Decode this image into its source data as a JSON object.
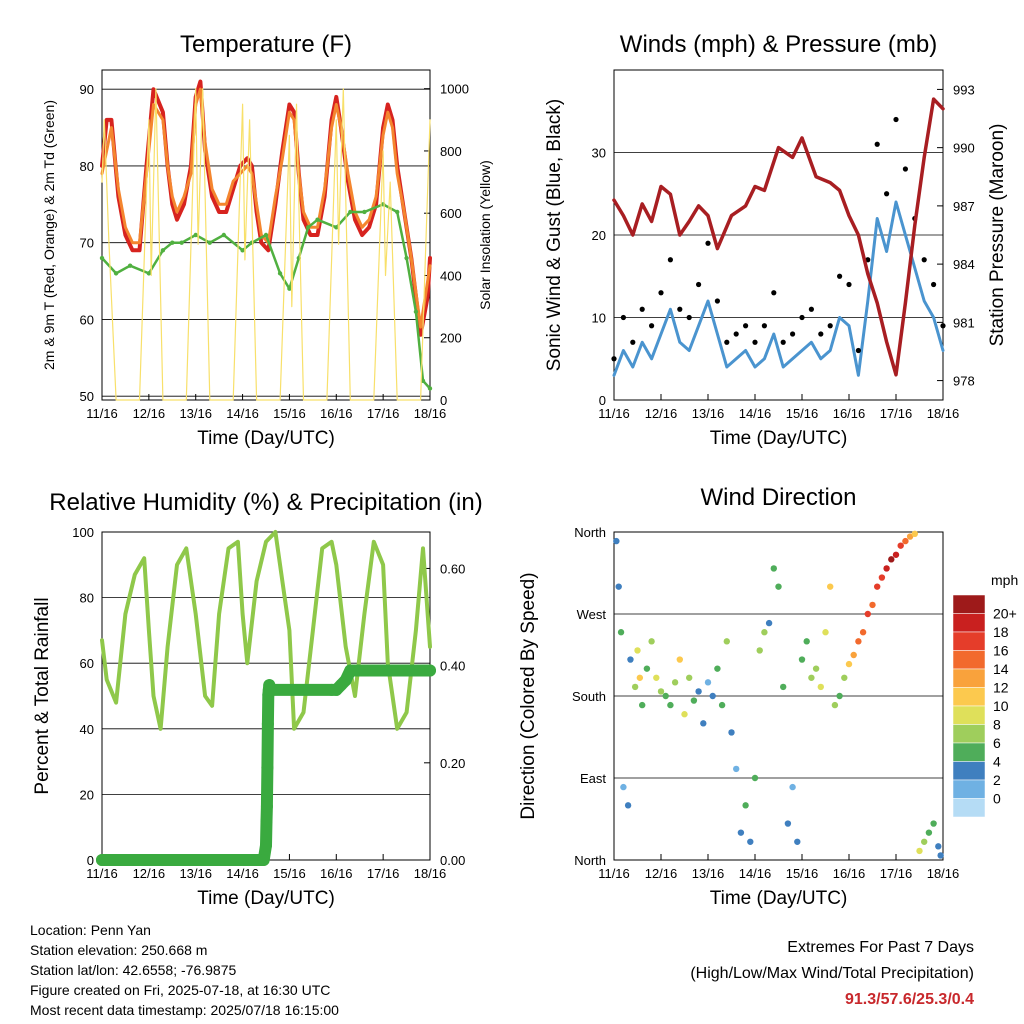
{
  "chart_data": [
    {
      "id": "temperature",
      "type": "line",
      "title": "Temperature (F)",
      "xlabel": "Time (Day/UTC)",
      "ylabel": "2m & 9m T (Red, Orange) & 2m Td (Green)",
      "y2label": "Solar Insolation (Yellow)",
      "x_ticks": [
        "11/16",
        "12/16",
        "13/16",
        "14/16",
        "15/16",
        "16/16",
        "17/16",
        "18/16"
      ],
      "ylim": [
        49.5,
        92.5
      ],
      "y_ticks": [
        50,
        60,
        70,
        80,
        90
      ],
      "y2lim": [
        0,
        1060
      ],
      "y2_ticks": [
        0,
        200,
        400,
        600,
        800,
        1000
      ],
      "grid": true,
      "colors": {
        "t2m": "#d7231f",
        "t9m": "#f4862f",
        "td": "#50b040",
        "solar": "#f8e06a"
      },
      "series": [
        {
          "key": "t2m",
          "axis": "left",
          "x": [
            0,
            0.1,
            0.2,
            0.35,
            0.5,
            0.65,
            0.8,
            0.95,
            1.1,
            1.3,
            1.4,
            1.5,
            1.6,
            1.75,
            1.9,
            2.0,
            2.1,
            2.2,
            2.35,
            2.5,
            2.65,
            2.8,
            2.95,
            3.1,
            3.2,
            3.3,
            3.4,
            3.55,
            3.7,
            3.85,
            4.0,
            4.1,
            4.2,
            4.3,
            4.45,
            4.6,
            4.75,
            4.9,
            5.0,
            5.1,
            5.25,
            5.4,
            5.55,
            5.7,
            5.85,
            6.0,
            6.1,
            6.2,
            6.3,
            6.45,
            6.6,
            6.8,
            6.95,
            7.0
          ],
          "y": [
            80,
            86,
            86,
            76,
            71,
            69,
            69,
            80,
            90,
            87,
            80,
            75,
            73,
            75,
            80,
            89,
            91,
            82,
            76,
            74,
            74,
            77,
            80,
            81,
            80,
            74,
            70,
            69,
            75,
            82,
            88,
            87,
            79,
            73,
            71,
            71,
            76,
            86,
            89,
            85,
            78,
            73,
            71,
            72,
            75,
            85,
            88,
            86,
            80,
            74,
            68,
            58,
            63,
            68
          ]
        },
        {
          "key": "t9m",
          "axis": "left",
          "x": [
            0,
            0.2,
            0.35,
            0.5,
            0.65,
            0.8,
            0.95,
            1.1,
            1.3,
            1.4,
            1.5,
            1.6,
            1.75,
            1.9,
            2.0,
            2.1,
            2.2,
            2.35,
            2.5,
            2.65,
            2.8,
            2.95,
            3.1,
            3.2,
            3.3,
            3.4,
            3.55,
            3.7,
            3.85,
            4.0,
            4.1,
            4.2,
            4.3,
            4.45,
            4.6,
            4.75,
            4.9,
            5.0,
            5.1,
            5.25,
            5.4,
            5.55,
            5.7,
            5.85,
            6.0,
            6.1,
            6.2,
            6.3,
            6.45,
            6.6,
            6.8,
            7.0
          ],
          "y": [
            79,
            85,
            77,
            72,
            70,
            70,
            79,
            88,
            86,
            80,
            76,
            74,
            76,
            79,
            88,
            90,
            83,
            77,
            75,
            75,
            78,
            79,
            80,
            79,
            75,
            71,
            70,
            76,
            81,
            87,
            86,
            79,
            74,
            72,
            72,
            77,
            85,
            88,
            85,
            79,
            74,
            72,
            73,
            76,
            84,
            87,
            85,
            79,
            74,
            68,
            59,
            67
          ]
        },
        {
          "key": "td",
          "axis": "left",
          "x": [
            0,
            0.3,
            0.6,
            1.0,
            1.3,
            1.5,
            1.7,
            2.0,
            2.3,
            2.6,
            3.0,
            3.2,
            3.5,
            3.8,
            4.0,
            4.2,
            4.4,
            4.6,
            5.0,
            5.3,
            5.6,
            6.0,
            6.3,
            6.5,
            6.7,
            6.85,
            7.0
          ],
          "y": [
            68,
            66,
            67,
            66,
            69,
            70,
            70,
            71,
            70,
            71,
            69,
            70,
            71,
            66,
            64,
            68,
            72,
            73,
            72,
            74,
            74,
            75,
            74,
            68,
            61,
            52,
            51
          ]
        },
        {
          "key": "solar",
          "axis": "right",
          "x": [
            0,
            0.05,
            0.15,
            0.3,
            0.55,
            0.8,
            1.0,
            1.05,
            1.15,
            1.3,
            1.55,
            1.8,
            2.0,
            2.05,
            2.15,
            2.3,
            2.55,
            2.8,
            3.0,
            3.05,
            3.15,
            3.3,
            3.55,
            3.8,
            4.0,
            4.05,
            4.15,
            4.3,
            4.55,
            4.8,
            5.0,
            5.05,
            5.15,
            5.3,
            5.55,
            5.8,
            6.0,
            6.05,
            6.15,
            6.3,
            6.55,
            6.8,
            7.0
          ],
          "y": [
            700,
            900,
            500,
            0,
            0,
            0,
            900,
            400,
            1000,
            0,
            0,
            0,
            1000,
            500,
            1000,
            0,
            0,
            0,
            950,
            450,
            900,
            0,
            0,
            0,
            850,
            300,
            950,
            0,
            0,
            0,
            900,
            500,
            1000,
            0,
            0,
            0,
            800,
            400,
            700,
            0,
            0,
            0,
            900
          ]
        }
      ]
    },
    {
      "id": "winds",
      "type": "line",
      "title": "Winds (mph) & Pressure (mb)",
      "xlabel": "Time (Day/UTC)",
      "ylabel": "Sonic Wind & Gust (Blue, Black)",
      "y2label": "Station Pressure (Maroon)",
      "x_ticks": [
        "11/16",
        "12/16",
        "13/16",
        "14/16",
        "15/16",
        "16/16",
        "17/16",
        "18/16"
      ],
      "ylim": [
        0,
        40
      ],
      "y_ticks": [
        0,
        10,
        20,
        30
      ],
      "y2lim": [
        977,
        994
      ],
      "y2_ticks": [
        978,
        981,
        984,
        987,
        990,
        993
      ],
      "grid": true,
      "colors": {
        "wind": "#4a94cf",
        "gust": "#000000",
        "pressure": "#a81e22"
      },
      "series": [
        {
          "key": "wind",
          "axis": "left",
          "x": [
            0,
            0.2,
            0.4,
            0.6,
            0.8,
            1.0,
            1.2,
            1.4,
            1.6,
            1.8,
            2.0,
            2.2,
            2.4,
            2.6,
            2.8,
            3.0,
            3.2,
            3.4,
            3.6,
            3.8,
            4.0,
            4.2,
            4.4,
            4.6,
            4.8,
            5.0,
            5.2,
            5.4,
            5.6,
            5.8,
            6.0,
            6.2,
            6.4,
            6.6,
            6.8,
            7.0
          ],
          "y": [
            3,
            6,
            4,
            7,
            5,
            8,
            11,
            7,
            6,
            9,
            12,
            8,
            4,
            5,
            6,
            4,
            5,
            8,
            4,
            5,
            6,
            7,
            5,
            6,
            10,
            9,
            3,
            12,
            22,
            18,
            24,
            20,
            16,
            12,
            10,
            6
          ]
        },
        {
          "key": "gust",
          "axis": "left",
          "x": [
            0,
            0.2,
            0.4,
            0.6,
            0.8,
            1.0,
            1.2,
            1.4,
            1.6,
            1.8,
            2.0,
            2.2,
            2.4,
            2.6,
            2.8,
            3.0,
            3.2,
            3.4,
            3.6,
            3.8,
            4.0,
            4.2,
            4.4,
            4.6,
            4.8,
            5.0,
            5.2,
            5.4,
            5.6,
            5.8,
            6.0,
            6.2,
            6.4,
            6.6,
            6.8,
            7.0
          ],
          "y": [
            5,
            10,
            7,
            11,
            9,
            13,
            17,
            11,
            10,
            14,
            19,
            12,
            7,
            8,
            9,
            7,
            9,
            13,
            7,
            8,
            10,
            11,
            8,
            9,
            15,
            14,
            6,
            17,
            31,
            25,
            34,
            28,
            22,
            17,
            14,
            9
          ]
        },
        {
          "key": "pressure",
          "axis": "right",
          "x": [
            0,
            0.2,
            0.4,
            0.6,
            0.8,
            1.0,
            1.2,
            1.4,
            1.6,
            1.8,
            2.0,
            2.2,
            2.5,
            2.8,
            3.0,
            3.2,
            3.5,
            3.8,
            4.0,
            4.3,
            4.6,
            4.8,
            5.0,
            5.2,
            5.4,
            5.6,
            5.8,
            6.0,
            6.2,
            6.4,
            6.6,
            6.8,
            7.0
          ],
          "y": [
            987.3,
            986.5,
            985.5,
            987.1,
            986.2,
            988.0,
            987.6,
            985.5,
            986.2,
            987.0,
            986.5,
            984.8,
            986.5,
            987.0,
            988.0,
            987.8,
            990.0,
            989.5,
            990.5,
            988.5,
            988.2,
            987.8,
            986.5,
            985.5,
            983.5,
            982.0,
            980.0,
            978.3,
            982.0,
            986.0,
            989.5,
            992.5,
            992.0
          ]
        }
      ]
    },
    {
      "id": "humidity",
      "type": "line",
      "title": "Relative Humidity (%) & Precipitation (in)",
      "xlabel": "Time (Day/UTC)",
      "ylabel": "Percent & Total Rainfall",
      "x_ticks": [
        "11/16",
        "12/16",
        "13/16",
        "14/16",
        "15/16",
        "16/16",
        "17/16",
        "18/16"
      ],
      "ylim": [
        0,
        100
      ],
      "y_ticks": [
        0,
        20,
        40,
        60,
        80,
        100
      ],
      "y2lim": [
        0,
        0.675
      ],
      "y2_ticks": [
        "0.00",
        "0.20",
        "0.40",
        "0.60"
      ],
      "grid": true,
      "colors": {
        "rh": "#8fc84a",
        "precip": "#3aaa3f"
      },
      "series": [
        {
          "key": "rh",
          "axis": "left",
          "x": [
            0,
            0.1,
            0.3,
            0.5,
            0.7,
            0.9,
            1.0,
            1.1,
            1.25,
            1.4,
            1.6,
            1.8,
            2.0,
            2.2,
            2.35,
            2.5,
            2.7,
            2.9,
            3.0,
            3.1,
            3.3,
            3.5,
            3.7,
            3.9,
            4.0,
            4.1,
            4.3,
            4.5,
            4.7,
            4.9,
            5.0,
            5.2,
            5.4,
            5.6,
            5.8,
            6.0,
            6.1,
            6.3,
            6.5,
            6.7,
            6.85,
            7.0
          ],
          "y": [
            67,
            55,
            48,
            75,
            87,
            92,
            70,
            50,
            40,
            65,
            90,
            95,
            75,
            50,
            47,
            75,
            95,
            97,
            75,
            60,
            85,
            97,
            100,
            80,
            70,
            40,
            45,
            70,
            95,
            97,
            90,
            65,
            50,
            75,
            97,
            90,
            60,
            40,
            45,
            70,
            95,
            65
          ]
        },
        {
          "key": "precip",
          "axis": "right",
          "x": [
            0,
            3.3,
            3.45,
            3.5,
            3.51,
            3.52,
            3.53,
            3.54,
            3.55,
            3.56,
            3.57,
            3.6,
            4.9,
            5.0,
            5.1,
            5.2,
            5.3,
            5.5,
            5.6,
            7.0
          ],
          "y": [
            0,
            0,
            0,
            0.03,
            0.08,
            0.11,
            0.19,
            0.28,
            0.34,
            0.35,
            0.36,
            0.35,
            0.35,
            0.35,
            0.36,
            0.37,
            0.39,
            0.39,
            0.39,
            0.39
          ]
        }
      ]
    },
    {
      "id": "direction",
      "type": "scatter",
      "title": "Wind Direction",
      "xlabel": "Time (Day/UTC)",
      "ylabel": "Direction (Colored By Speed)",
      "x_ticks": [
        "11/16",
        "12/16",
        "13/16",
        "14/16",
        "15/16",
        "16/16",
        "17/16",
        "18/16"
      ],
      "y_ticks": [
        "North",
        "East",
        "South",
        "West",
        "North"
      ],
      "ylim": [
        0,
        360
      ],
      "grid": true,
      "legend": {
        "title": "mph",
        "labels": [
          "20+",
          "18",
          "16",
          "14",
          "12",
          "10",
          "8",
          "6",
          "4",
          "2",
          "0"
        ],
        "colors": [
          "#9e1a1a",
          "#c9201f",
          "#e53d2a",
          "#f26a2d",
          "#f9a23c",
          "#fcc94e",
          "#dfe05a",
          "#9fce5c",
          "#4fad5a",
          "#3f7fbf",
          "#6fb1e3",
          "#b5dcf5"
        ]
      },
      "x": [
        0.05,
        0.1,
        0.15,
        0.2,
        0.3,
        0.35,
        0.45,
        0.5,
        0.55,
        0.6,
        0.7,
        0.8,
        0.9,
        1.0,
        1.1,
        1.2,
        1.3,
        1.4,
        1.5,
        1.6,
        1.7,
        1.8,
        1.9,
        2.0,
        2.1,
        2.2,
        2.3,
        2.4,
        2.5,
        2.6,
        2.7,
        2.8,
        2.9,
        3.0,
        3.1,
        3.2,
        3.3,
        3.4,
        3.5,
        3.6,
        3.7,
        3.8,
        3.9,
        4.0,
        4.1,
        4.2,
        4.3,
        4.4,
        4.5,
        4.6,
        4.7,
        4.8,
        4.9,
        5.0,
        5.1,
        5.2,
        5.3,
        5.4,
        5.5,
        5.6,
        5.7,
        5.8,
        5.9,
        6.0,
        6.1,
        6.2,
        6.3,
        6.4,
        6.5,
        6.6,
        6.7,
        6.8,
        6.9,
        6.95
      ],
      "y": [
        350,
        300,
        250,
        80,
        60,
        220,
        190,
        230,
        200,
        170,
        210,
        240,
        200,
        185,
        180,
        170,
        195,
        220,
        160,
        200,
        175,
        185,
        150,
        195,
        180,
        210,
        170,
        240,
        140,
        100,
        30,
        60,
        20,
        90,
        230,
        250,
        260,
        320,
        300,
        190,
        40,
        80,
        20,
        220,
        240,
        200,
        210,
        190,
        250,
        300,
        170,
        180,
        200,
        215,
        225,
        240,
        250,
        270,
        280,
        300,
        310,
        320,
        330,
        335,
        345,
        350,
        355,
        358,
        10,
        20,
        30,
        40,
        15,
        5
      ],
      "speed": [
        5,
        4,
        6,
        3,
        4,
        5,
        8,
        10,
        12,
        6,
        7,
        9,
        11,
        8,
        7,
        6,
        9,
        12,
        10,
        8,
        6,
        5,
        4,
        3,
        5,
        7,
        6,
        9,
        4,
        3,
        5,
        6,
        4,
        7,
        8,
        9,
        5,
        6,
        6,
        7,
        4,
        3,
        5,
        6,
        7,
        8,
        9,
        10,
        11,
        12,
        8,
        7,
        9,
        13,
        14,
        16,
        17,
        18,
        16,
        18,
        19,
        21,
        22,
        20,
        18,
        17,
        14,
        12,
        10,
        8,
        7,
        6,
        5,
        4
      ]
    }
  ],
  "footer": {
    "location": "Location: Penn Yan",
    "elevation": "Station elevation: 250.668 m",
    "latlon": "Station lat/lon: 42.6558; -76.9875",
    "created": "Figure created on Fri, 2025-07-18, at 16:30 UTC",
    "recent": "Most recent data timestamp: 2025/07/18 16:15:00"
  },
  "extremes": {
    "title": "Extremes For Past 7 Days",
    "subtitle": "(High/Low/Max Wind/Total Precipitation)",
    "values": "91.3/57.6/25.3/0.4"
  }
}
